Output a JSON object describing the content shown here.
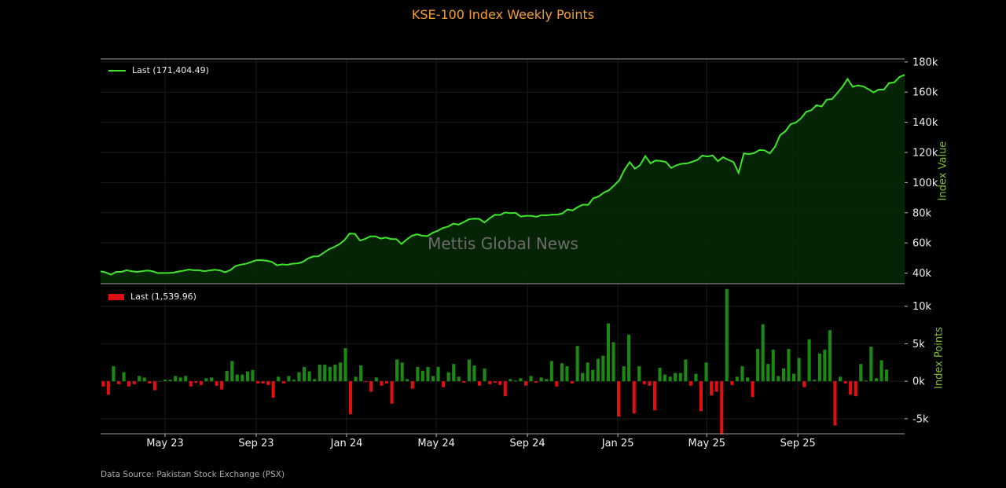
{
  "title": "KSE-100 Index Weekly Points",
  "source": "Data Source: Pakistan Stock Exchange (PSX)",
  "watermark": "Mettis Global News",
  "colors": {
    "line": "#3ee62a",
    "area": "#062806",
    "up": "#1a8a12",
    "down": "#e01010",
    "title": "#f0a030",
    "axis_label": "#7fc230"
  },
  "chart_data": [
    {
      "type": "area",
      "ylabel": "Index Value",
      "legend": "Last (171,404.49)",
      "legend_position": "top-left",
      "ylim": [
        33000,
        182000
      ],
      "yticks": [
        40000,
        60000,
        80000,
        100000,
        120000,
        140000,
        160000,
        180000
      ],
      "ytick_labels": [
        "40k",
        "60k",
        "80k",
        "100k",
        "120k",
        "140k",
        "160k",
        "180k"
      ],
      "x_start": "2023-02-03",
      "x_step_days": 7,
      "values": [
        41200,
        40500,
        39000,
        40800,
        40800,
        41900,
        41300,
        40800,
        41300,
        41700,
        41300,
        40100,
        40100,
        40100,
        40300,
        41100,
        41600,
        42400,
        41900,
        41900,
        41300,
        41800,
        42200,
        41800,
        40600,
        42000,
        44700,
        45600,
        46200,
        47400,
        48600,
        48600,
        48200,
        47500,
        45200,
        45800,
        45500,
        46300,
        46500,
        47500,
        49800,
        51100,
        51200,
        53500,
        55800,
        57300,
        59100,
        61800,
        66300,
        66100,
        61600,
        62700,
        64400,
        64400,
        62900,
        63600,
        62600,
        62600,
        59300,
        62300,
        64800,
        65700,
        64800,
        64600,
        66700,
        68100,
        70000,
        70900,
        72800,
        72200,
        73800,
        75700,
        76100,
        76000,
        73600,
        76400,
        78700,
        78600,
        80200,
        79800,
        80000,
        77500,
        78000,
        78000,
        77400,
        78500,
        78300,
        78800,
        78800,
        79500,
        82200,
        81600,
        83800,
        85400,
        85300,
        89700,
        90800,
        93400,
        95000,
        98100,
        101600,
        108600,
        113600,
        109200,
        111600,
        117600,
        112800,
        114700,
        114400,
        113600,
        109700,
        111500,
        112500,
        112700,
        113800,
        115000,
        117900,
        117300,
        118100,
        114200,
        116800,
        115100,
        113700,
        106500,
        119400,
        118900,
        119600,
        121600,
        121400,
        119400,
        123700,
        131500,
        134000,
        138700,
        139800,
        142500,
        146900,
        148000,
        151300,
        150500,
        155000,
        155400,
        159300,
        163500,
        168700,
        163500,
        164500,
        163800,
        162000,
        159800,
        161700,
        161700,
        166000,
        166500,
        170000,
        171404
      ]
    },
    {
      "type": "bar",
      "ylabel": "Index Points",
      "legend": "Last (1,539.96)",
      "legend_position": "top-left",
      "ylim": [
        -7000,
        13000
      ],
      "yticks": [
        -5000,
        0,
        5000,
        10000
      ],
      "ytick_labels": [
        "-5k",
        "0k",
        "5k",
        "10k"
      ],
      "x_tick_labels": [
        "May 23",
        "Sep 23",
        "Jan 24",
        "May 24",
        "Sep 24",
        "Jan 25",
        "May 25",
        "Sep 25"
      ],
      "x_tick_dates": [
        "2023-05-01",
        "2023-09-01",
        "2024-01-01",
        "2024-05-01",
        "2024-09-01",
        "2025-01-01",
        "2025-05-01",
        "2025-09-01"
      ],
      "values": [
        -700,
        -1800,
        2000,
        -400,
        1200,
        -700,
        -400,
        700,
        500,
        -300,
        -1200,
        0,
        200,
        200,
        700,
        500,
        700,
        -700,
        -200,
        -500,
        400,
        500,
        -600,
        -1100,
        1400,
        2700,
        900,
        900,
        1300,
        1500,
        -300,
        -300,
        -500,
        -2200,
        600,
        -300,
        700,
        200,
        1200,
        1900,
        1300,
        300,
        2200,
        2200,
        1900,
        2200,
        2500,
        4400,
        -4400,
        600,
        2100,
        -100,
        -1400,
        500,
        -600,
        -300,
        -3000,
        2900,
        2500,
        300,
        -1000,
        1900,
        1400,
        1900,
        700,
        1900,
        -800,
        1200,
        2300,
        600,
        -200,
        2900,
        2100,
        -600,
        1700,
        -400,
        -200,
        -500,
        -2000,
        300,
        100,
        400,
        -600,
        700,
        -200,
        500,
        300,
        2700,
        -700,
        2400,
        2000,
        -300,
        4700,
        1100,
        2500,
        1500,
        3000,
        3400,
        7700,
        5200,
        -4700,
        2000,
        6200,
        -4300,
        2000,
        -400,
        -600,
        -3900,
        1800,
        900,
        600,
        1100,
        1100,
        2900,
        -600,
        1000,
        -4000,
        2500,
        -1900,
        -1400,
        -7100,
        12300,
        -500,
        600,
        2000,
        500,
        -2100,
        4300,
        7600,
        2300,
        4200,
        700,
        1700,
        4300,
        1000,
        3100,
        -800,
        5600,
        200,
        3700,
        4200,
        6800,
        -5900,
        600,
        -300,
        -1800,
        -2000,
        2300,
        100,
        4600,
        400,
        2800,
        1540
      ]
    }
  ]
}
